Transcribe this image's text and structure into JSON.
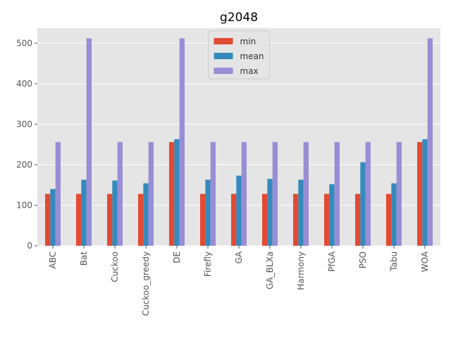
{
  "chart_data": {
    "type": "bar",
    "title": "g2048",
    "categories": [
      "ABC",
      "Bat",
      "Cuckoo",
      "Cuckoo_greedy",
      "DE",
      "Firefly",
      "GA",
      "GA_BLXa",
      "Harmony",
      "PfGA",
      "PSO",
      "Tabu",
      "WOA"
    ],
    "series": [
      {
        "name": "min",
        "color": "#E24A33",
        "values": [
          128,
          128,
          128,
          128,
          256,
          128,
          128,
          128,
          128,
          128,
          128,
          128,
          256
        ]
      },
      {
        "name": "mean",
        "color": "#348ABD",
        "values": [
          140,
          163,
          161,
          154,
          263,
          163,
          173,
          165,
          163,
          152,
          206,
          154,
          263
        ]
      },
      {
        "name": "max",
        "color": "#988ED5",
        "values": [
          256,
          512,
          256,
          256,
          512,
          256,
          256,
          256,
          256,
          256,
          256,
          256,
          512
        ]
      }
    ],
    "ylim": [
      0,
      537
    ],
    "yticks": [
      0,
      100,
      200,
      300,
      400,
      500
    ],
    "grid": true,
    "legend": "upper center"
  }
}
